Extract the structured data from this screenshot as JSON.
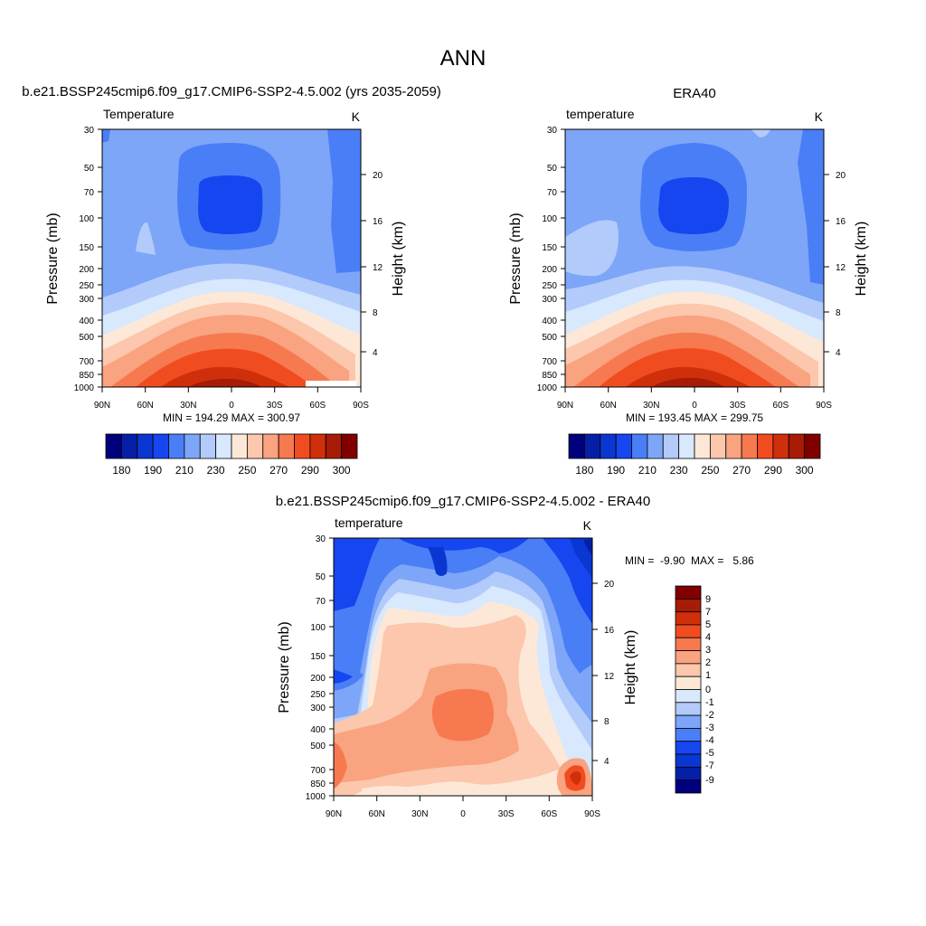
{
  "figure": {
    "title": "ANN"
  },
  "chart_data": [
    {
      "type": "heatmap",
      "id": "model",
      "title": "b.e21.BSSP245cmip6.f09_g17.CMIP6-SSP2-4.5.002 (yrs 2035-2059)",
      "left_label": "Temperature",
      "units": "K",
      "ylabel": "Pressure (mb)",
      "ylabel_right": "Height (km)",
      "stats": "MIN = 194.29  MAX = 300.97",
      "x_ticks": [
        "90N",
        "60N",
        "30N",
        "0",
        "30S",
        "60S",
        "90S"
      ],
      "y_ticks": [
        "30",
        "50",
        "70",
        "100",
        "150",
        "200",
        "250",
        "300",
        "400",
        "500",
        "700",
        "850",
        "1000"
      ],
      "y_ticks_right": [
        "20",
        "16",
        "12",
        "8",
        "4"
      ],
      "colorbar_labels": [
        "180",
        "190",
        "210",
        "230",
        "250",
        "270",
        "290",
        "300"
      ],
      "colorbar_levels": [
        180,
        185,
        190,
        200,
        210,
        220,
        230,
        240,
        250,
        260,
        270,
        280,
        290,
        295,
        300
      ],
      "colorbar_colors": [
        "#00007f",
        "#0520a6",
        "#0a37d1",
        "#1646f0",
        "#4a7ef7",
        "#7da6f8",
        "#b2cbfb",
        "#d8e8fd",
        "#fde8d8",
        "#fcc7ac",
        "#f9a380",
        "#f7794f",
        "#f14c20",
        "#cf2f0b",
        "#a71b07",
        "#800000"
      ],
      "data_unit_ranges": {
        "x": [
          "90N",
          "90S"
        ],
        "y_mb": [
          30,
          1000
        ]
      }
    },
    {
      "type": "heatmap",
      "id": "obs",
      "title": "ERA40",
      "left_label": "temperature",
      "units": "K",
      "ylabel": "Pressure (mb)",
      "ylabel_right": "Height (km)",
      "stats": "MIN = 193.45  MAX = 299.75",
      "x_ticks": [
        "90N",
        "60N",
        "30N",
        "0",
        "30S",
        "60S",
        "90S"
      ],
      "y_ticks": [
        "30",
        "50",
        "70",
        "100",
        "150",
        "200",
        "250",
        "300",
        "400",
        "500",
        "700",
        "850",
        "1000"
      ],
      "y_ticks_right": [
        "20",
        "16",
        "12",
        "8",
        "4"
      ],
      "colorbar_labels": [
        "180",
        "190",
        "210",
        "230",
        "250",
        "270",
        "290",
        "300"
      ],
      "colorbar_levels": [
        180,
        185,
        190,
        200,
        210,
        220,
        230,
        240,
        250,
        260,
        270,
        280,
        290,
        295,
        300
      ],
      "colorbar_colors": [
        "#00007f",
        "#0520a6",
        "#0a37d1",
        "#1646f0",
        "#4a7ef7",
        "#7da6f8",
        "#b2cbfb",
        "#d8e8fd",
        "#fde8d8",
        "#fcc7ac",
        "#f9a380",
        "#f7794f",
        "#f14c20",
        "#cf2f0b",
        "#a71b07",
        "#800000"
      ],
      "data_unit_ranges": {
        "x": [
          "90N",
          "90S"
        ],
        "y_mb": [
          30,
          1000
        ]
      }
    },
    {
      "type": "heatmap",
      "id": "diff",
      "title": "b.e21.BSSP245cmip6.f09_g17.CMIP6-SSP2-4.5.002 - ERA40",
      "left_label": "temperature",
      "units": "K",
      "ylabel": "Pressure (mb)",
      "ylabel_right": "Height (km)",
      "stats": "MIN =  -9.90  MAX =   5.86",
      "x_ticks": [
        "90N",
        "60N",
        "30N",
        "0",
        "30S",
        "60S",
        "90S"
      ],
      "y_ticks": [
        "30",
        "50",
        "70",
        "100",
        "150",
        "200",
        "250",
        "300",
        "400",
        "500",
        "700",
        "850",
        "1000"
      ],
      "y_ticks_right": [
        "20",
        "16",
        "12",
        "8",
        "4"
      ],
      "colorbar_labels": [
        "9",
        "7",
        "5",
        "4",
        "3",
        "2",
        "1",
        "0",
        "-1",
        "-2",
        "-3",
        "-4",
        "-5",
        "-7",
        "-9"
      ],
      "colorbar_levels": [
        -9,
        -7,
        -5,
        -4,
        -3,
        -2,
        -1,
        0,
        1,
        2,
        3,
        4,
        5,
        7,
        9
      ],
      "colorbar_colors": [
        "#800000",
        "#a71b07",
        "#cf2f0b",
        "#f14c20",
        "#f7794f",
        "#f9a380",
        "#fcc7ac",
        "#fde8d8",
        "#d8e8fd",
        "#b2cbfb",
        "#7da6f8",
        "#4a7ef7",
        "#1646f0",
        "#0a37d1",
        "#0520a6",
        "#00007f"
      ],
      "data_unit_ranges": {
        "x": [
          "90N",
          "90S"
        ],
        "y_mb": [
          30,
          1000
        ]
      }
    }
  ]
}
